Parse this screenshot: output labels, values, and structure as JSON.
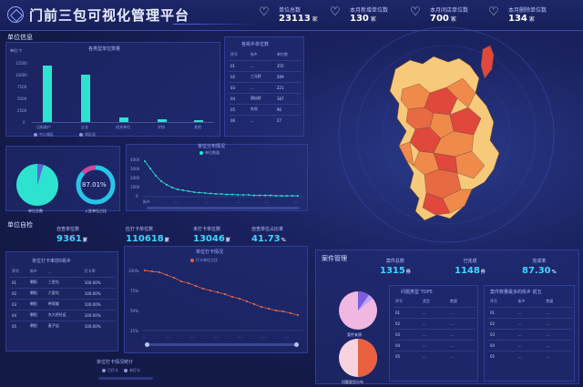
{
  "header": {
    "title": "门前三包可视化管理平台",
    "kpis": [
      {
        "label": "单位总数",
        "value": "23113",
        "unit": "家"
      },
      {
        "label": "本月新增单位数",
        "value": "130",
        "unit": "家"
      },
      {
        "label": "本月闭店单位数",
        "value": "700",
        "unit": "家"
      },
      {
        "label": "本月删除单位数",
        "value": "134",
        "unit": "家"
      }
    ]
  },
  "unit_info": {
    "section_title": "单位信息",
    "bar_chart": {
      "title": "各类型单位数量",
      "unit_label": "单位:个",
      "yticks": [
        "12500",
        "10000",
        "7500",
        "5000",
        "2500",
        "0"
      ],
      "categories": [
        "沿街商户",
        "企业",
        "机关单位",
        "学校",
        "其他"
      ],
      "legend": [
        "中心城区",
        "郊区县"
      ]
    },
    "top_table": {
      "title": "各街乡单位数",
      "headers": [
        "序号",
        "街乡",
        "单位数"
      ],
      "rows": [
        [
          "01",
          "...",
          "355"
        ],
        [
          "02",
          "三元桥",
          "289"
        ],
        [
          "03",
          "...",
          "221"
        ],
        [
          "04",
          "酒仙桥",
          "187"
        ],
        [
          "05",
          "东坝",
          "96"
        ],
        [
          "06",
          "...",
          "27"
        ]
      ]
    },
    "pie1_label": "单位总数",
    "ring_value": "87.01%",
    "ring_label": "入驻单位占比",
    "line_chart": {
      "title": "单位分布情况",
      "legend": "单位数量",
      "yticks": [
        "4000",
        "3000",
        "2000",
        "1000",
        "0"
      ],
      "xticks": [
        "街乡",
        "...",
        "...",
        "...",
        "...",
        "..."
      ]
    }
  },
  "checkin": {
    "section_title": "单位自检",
    "stats": [
      {
        "label": "自查单位数",
        "value": "9361",
        "unit": "家"
      },
      {
        "label": "应打卡单位数",
        "value": "110618",
        "unit": "家"
      },
      {
        "label": "未打卡单位数",
        "value": "13046",
        "unit": "家"
      },
      {
        "label": "自查单位占比率",
        "value": "41.73",
        "unit": "%"
      }
    ],
    "table": {
      "title": "单位打卡率前5街乡",
      "headers": [
        "序号",
        "街乡",
        "...",
        "打卡率"
      ],
      "rows": [
        [
          "01",
          "朝阳",
          "三里屯",
          "100.00%"
        ],
        [
          "02",
          "朝阳",
          "六里屯",
          "100.00%"
        ],
        [
          "03",
          "朝阳",
          "呼家楼",
          "100.00%"
        ],
        [
          "04",
          "朝阳",
          "东大桥社区",
          "100.00%"
        ],
        [
          "05",
          "朝阳",
          "麦子店",
          "100.00%"
        ]
      ]
    },
    "line_chart": {
      "title": "单位打卡情况",
      "legend": "打卡单位占比",
      "yticks": [
        "100%",
        "75%",
        "50%",
        "25%",
        "0%"
      ],
      "xticks": [
        "...",
        "...",
        "...",
        "...",
        "...",
        "...",
        "..."
      ]
    },
    "bottom_title": "单位打卡情况统计",
    "bottom_legend": [
      "已打卡",
      "未打卡"
    ]
  },
  "cases": {
    "section_title": "案件管理",
    "stats": [
      {
        "label": "案件总数",
        "value": "1315",
        "unit": "件"
      },
      {
        "label": "已完成",
        "value": "1148",
        "unit": "件"
      },
      {
        "label": "完成率",
        "value": "87.30",
        "unit": "%"
      }
    ],
    "pie_label_1": "案件来源",
    "pie_label_2": "问题类型分布",
    "type_table": {
      "title": "问题类型 TOP5",
      "headers": [
        "序号",
        "类型",
        "数量"
      ],
      "rows": [
        [
          "01",
          "...",
          "..."
        ],
        [
          "02",
          "...",
          "..."
        ],
        [
          "03",
          "...",
          "..."
        ],
        [
          "04",
          "...",
          "..."
        ],
        [
          "05",
          "...",
          "..."
        ]
      ]
    },
    "street_table": {
      "title": "案件数量最多的街乡 前五",
      "headers": [
        "序号",
        "街乡",
        "数量"
      ],
      "rows": [
        [
          "01",
          "...",
          "..."
        ],
        [
          "02",
          "...",
          "..."
        ],
        [
          "03",
          "...",
          "..."
        ],
        [
          "04",
          "...",
          "..."
        ],
        [
          "05",
          "...",
          "..."
        ]
      ]
    }
  },
  "colors": {
    "accent": "#3ad8ff",
    "teal": "#2de3d0",
    "line": "#e0614a",
    "map_light": "#f7c97a",
    "map_mid": "#f08a4b",
    "map_dark": "#e0483c"
  }
}
